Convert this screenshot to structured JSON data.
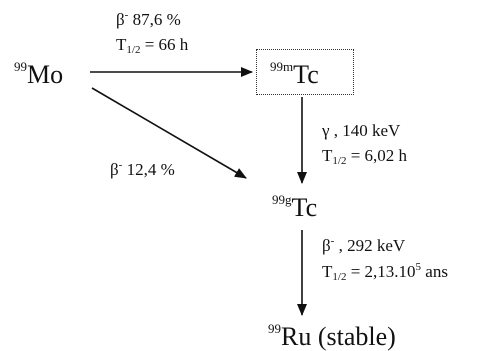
{
  "nuclides": {
    "mo99": {
      "mass": "99",
      "symbol": "Mo"
    },
    "tc99m": {
      "mass": "99m",
      "symbol": "Tc"
    },
    "tc99g": {
      "mass": "99g",
      "symbol": "Tc"
    },
    "ru99": {
      "mass": "99",
      "symbol": "Ru (stable)"
    }
  },
  "transitions": {
    "mo_to_tc99m": {
      "particle": "β",
      "particle_sup": "-",
      "percent": " 87,6 %",
      "halflife_symbol": "T",
      "halflife_sub": "1/2",
      "halflife_value": " = 66 h"
    },
    "mo_to_tc99g": {
      "particle": "β",
      "particle_sup": "-",
      "percent": " 12,4 %"
    },
    "tc99m_to_tc99g": {
      "particle": "γ",
      "energy": " , 140 keV",
      "halflife_symbol": "T",
      "halflife_sub": "1/2",
      "halflife_value": " = 6,02 h"
    },
    "tc99g_to_ru99": {
      "particle": "β",
      "particle_sup": "-",
      "energy": " , 292 keV",
      "halflife_symbol": "T",
      "halflife_sub": "1/2",
      "halflife_value_pre": " = 2,13.10",
      "halflife_exp": "5",
      "halflife_value_post": " ans"
    }
  },
  "colors": {
    "ink": "#111111",
    "box_border": "#333333"
  }
}
